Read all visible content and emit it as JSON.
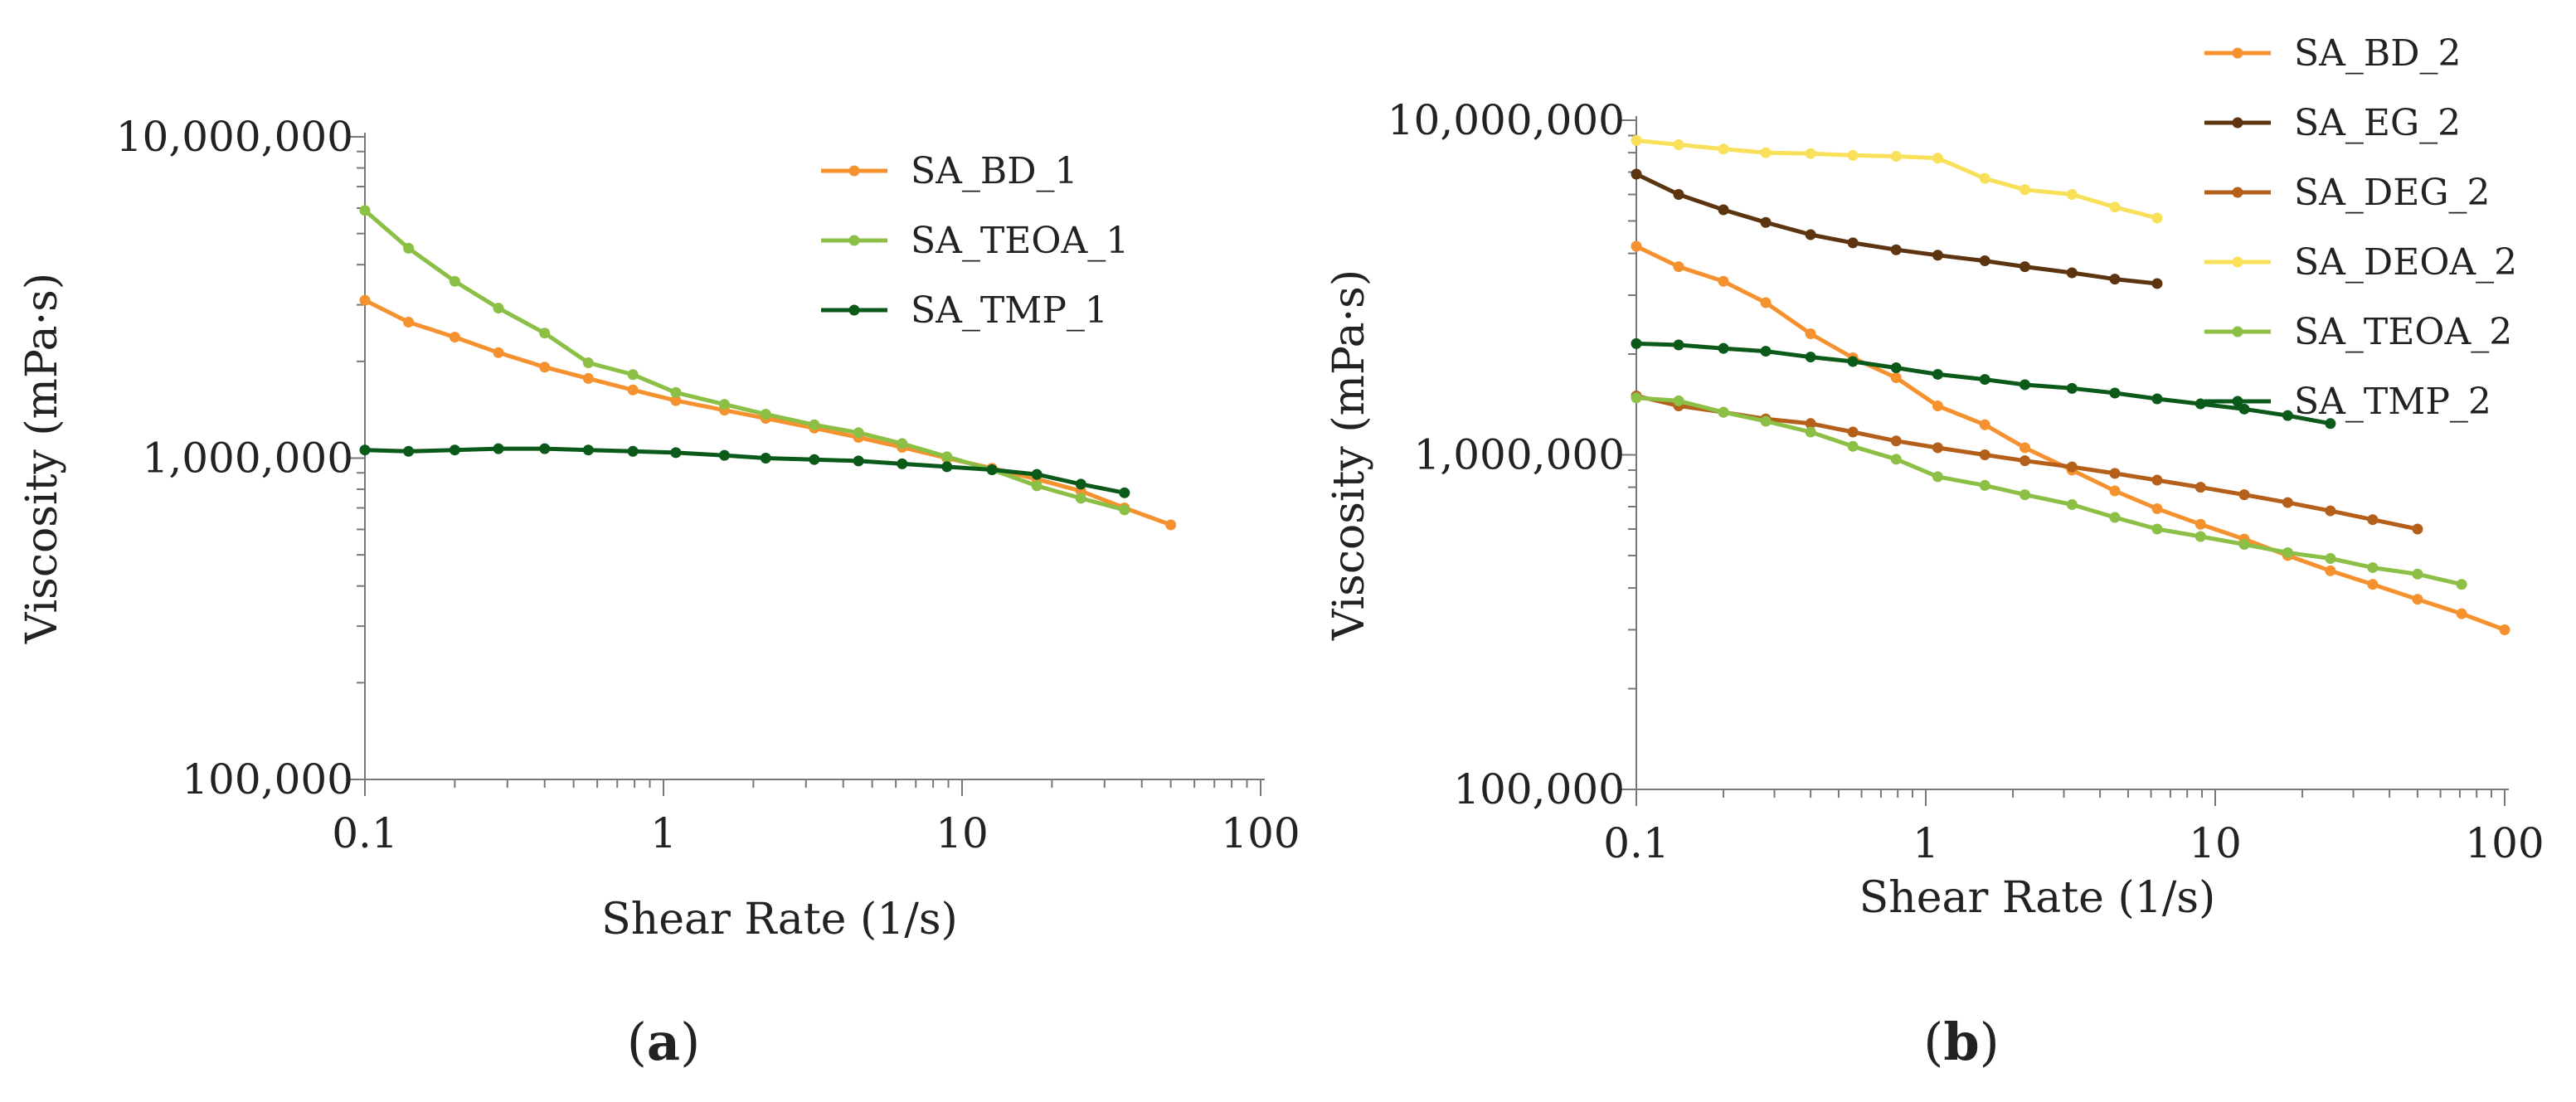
{
  "chart_data": [
    {
      "type": "line",
      "panel_label": "a",
      "xscale": "log",
      "yscale": "log",
      "xlim": [
        0.1,
        100
      ],
      "ylim": [
        100000,
        10000000
      ],
      "xticks": [
        0.1,
        1,
        10,
        100
      ],
      "xtick_labels": [
        "0.1",
        "1",
        "10",
        "100"
      ],
      "yticks": [
        100000,
        1000000,
        10000000
      ],
      "ytick_labels": [
        "100,000",
        "1,000,000",
        "10,000,000"
      ],
      "xlabel": "Shear Rate (1/s)",
      "ylabel": "Viscosity (mPa·s)",
      "grid": false,
      "legend_position": "top-right",
      "series": [
        {
          "name": "SA_BD_1",
          "color": "#F5922F",
          "x": [
            0.1,
            0.14,
            0.2,
            0.28,
            0.4,
            0.56,
            0.79,
            1.1,
            1.6,
            2.2,
            3.2,
            4.5,
            6.3,
            8.9,
            12.6,
            17.8,
            25,
            35,
            50
          ],
          "y": [
            3100000,
            2650000,
            2380000,
            2130000,
            1920000,
            1770000,
            1630000,
            1510000,
            1410000,
            1330000,
            1240000,
            1160000,
            1080000,
            1000000,
            930000,
            860000,
            790000,
            700000,
            620000
          ]
        },
        {
          "name": "SA_TEOA_1",
          "color": "#8BBF45",
          "x": [
            0.1,
            0.14,
            0.2,
            0.28,
            0.4,
            0.56,
            0.79,
            1.1,
            1.6,
            2.2,
            3.2,
            4.5,
            6.3,
            8.9,
            12.6,
            17.8,
            25,
            35
          ],
          "y": [
            5900000,
            4500000,
            3550000,
            2930000,
            2450000,
            1980000,
            1820000,
            1600000,
            1470000,
            1370000,
            1270000,
            1200000,
            1110000,
            1010000,
            920000,
            820000,
            750000,
            690000
          ]
        },
        {
          "name": "SA_TMP_1",
          "color": "#0B5A1A",
          "x": [
            0.1,
            0.14,
            0.2,
            0.28,
            0.4,
            0.56,
            0.79,
            1.1,
            1.6,
            2.2,
            3.2,
            4.5,
            6.3,
            8.9,
            12.6,
            17.8,
            25,
            35
          ],
          "y": [
            1060000,
            1050000,
            1060000,
            1070000,
            1070000,
            1060000,
            1050000,
            1040000,
            1020000,
            1000000,
            990000,
            980000,
            960000,
            940000,
            920000,
            890000,
            830000,
            780000
          ]
        }
      ]
    },
    {
      "type": "line",
      "panel_label": "b",
      "xscale": "log",
      "yscale": "log",
      "xlim": [
        0.1,
        100
      ],
      "ylim": [
        100000,
        10000000
      ],
      "xticks": [
        0.1,
        1,
        10,
        100
      ],
      "xtick_labels": [
        "0.1",
        "1",
        "10",
        "100"
      ],
      "yticks": [
        100000,
        1000000,
        10000000
      ],
      "ytick_labels": [
        "100,000",
        "1,000,000",
        "10,000,000"
      ],
      "xlabel": "Shear Rate (1/s)",
      "ylabel": "Viscosity (mPa·s)",
      "grid": false,
      "legend_position": "top-right",
      "series": [
        {
          "name": "SA_BD_2",
          "color": "#F5922F",
          "x": [
            0.1,
            0.14,
            0.2,
            0.28,
            0.4,
            0.56,
            0.79,
            1.1,
            1.6,
            2.2,
            3.2,
            4.5,
            6.3,
            8.9,
            12.6,
            17.8,
            25,
            35,
            50,
            71,
            100
          ],
          "y": [
            4200000,
            3650000,
            3300000,
            2850000,
            2300000,
            1950000,
            1700000,
            1400000,
            1230000,
            1050000,
            900000,
            780000,
            690000,
            620000,
            560000,
            500000,
            450000,
            410000,
            370000,
            335000,
            300000
          ]
        },
        {
          "name": "SA_EG_2",
          "color": "#5C3410",
          "x": [
            0.1,
            0.14,
            0.2,
            0.28,
            0.4,
            0.56,
            0.79,
            1.1,
            1.6,
            2.2,
            3.2,
            4.5,
            6.3
          ],
          "y": [
            6900000,
            6000000,
            5400000,
            4950000,
            4550000,
            4300000,
            4100000,
            3950000,
            3800000,
            3650000,
            3500000,
            3350000,
            3250000
          ]
        },
        {
          "name": "SA_DEG_2",
          "color": "#B45F1A",
          "x": [
            0.1,
            0.14,
            0.2,
            0.28,
            0.4,
            0.56,
            0.79,
            1.1,
            1.6,
            2.2,
            3.2,
            4.5,
            6.3,
            8.9,
            12.6,
            17.8,
            25,
            35,
            50
          ],
          "y": [
            1500000,
            1400000,
            1340000,
            1280000,
            1240000,
            1170000,
            1100000,
            1050000,
            1000000,
            960000,
            920000,
            880000,
            840000,
            800000,
            760000,
            720000,
            680000,
            640000,
            600000
          ]
        },
        {
          "name": "SA_DEOA_2",
          "color": "#F8E05A",
          "x": [
            0.1,
            0.14,
            0.2,
            0.28,
            0.4,
            0.56,
            0.79,
            1.1,
            1.6,
            2.2,
            3.2,
            4.5,
            6.3
          ],
          "y": [
            8700000,
            8450000,
            8200000,
            8000000,
            7950000,
            7850000,
            7800000,
            7700000,
            6700000,
            6200000,
            6000000,
            5500000,
            5100000
          ]
        },
        {
          "name": "SA_TEOA_2",
          "color": "#8BBF45",
          "x": [
            0.1,
            0.14,
            0.2,
            0.28,
            0.4,
            0.56,
            0.79,
            1.1,
            1.6,
            2.2,
            3.2,
            4.5,
            6.3,
            8.9,
            12.6,
            17.8,
            25,
            35,
            50,
            71
          ],
          "y": [
            1480000,
            1450000,
            1340000,
            1260000,
            1170000,
            1060000,
            970000,
            860000,
            810000,
            760000,
            710000,
            650000,
            600000,
            570000,
            540000,
            510000,
            490000,
            460000,
            440000,
            410000
          ]
        },
        {
          "name": "SA_TMP_2",
          "color": "#0B5A1A",
          "x": [
            0.1,
            0.14,
            0.2,
            0.28,
            0.4,
            0.56,
            0.79,
            1.1,
            1.6,
            2.2,
            3.2,
            4.5,
            6.3,
            8.9,
            12.6,
            17.8,
            25
          ],
          "y": [
            2150000,
            2130000,
            2080000,
            2040000,
            1960000,
            1900000,
            1820000,
            1740000,
            1680000,
            1620000,
            1580000,
            1530000,
            1470000,
            1420000,
            1370000,
            1310000,
            1240000
          ]
        }
      ]
    }
  ]
}
